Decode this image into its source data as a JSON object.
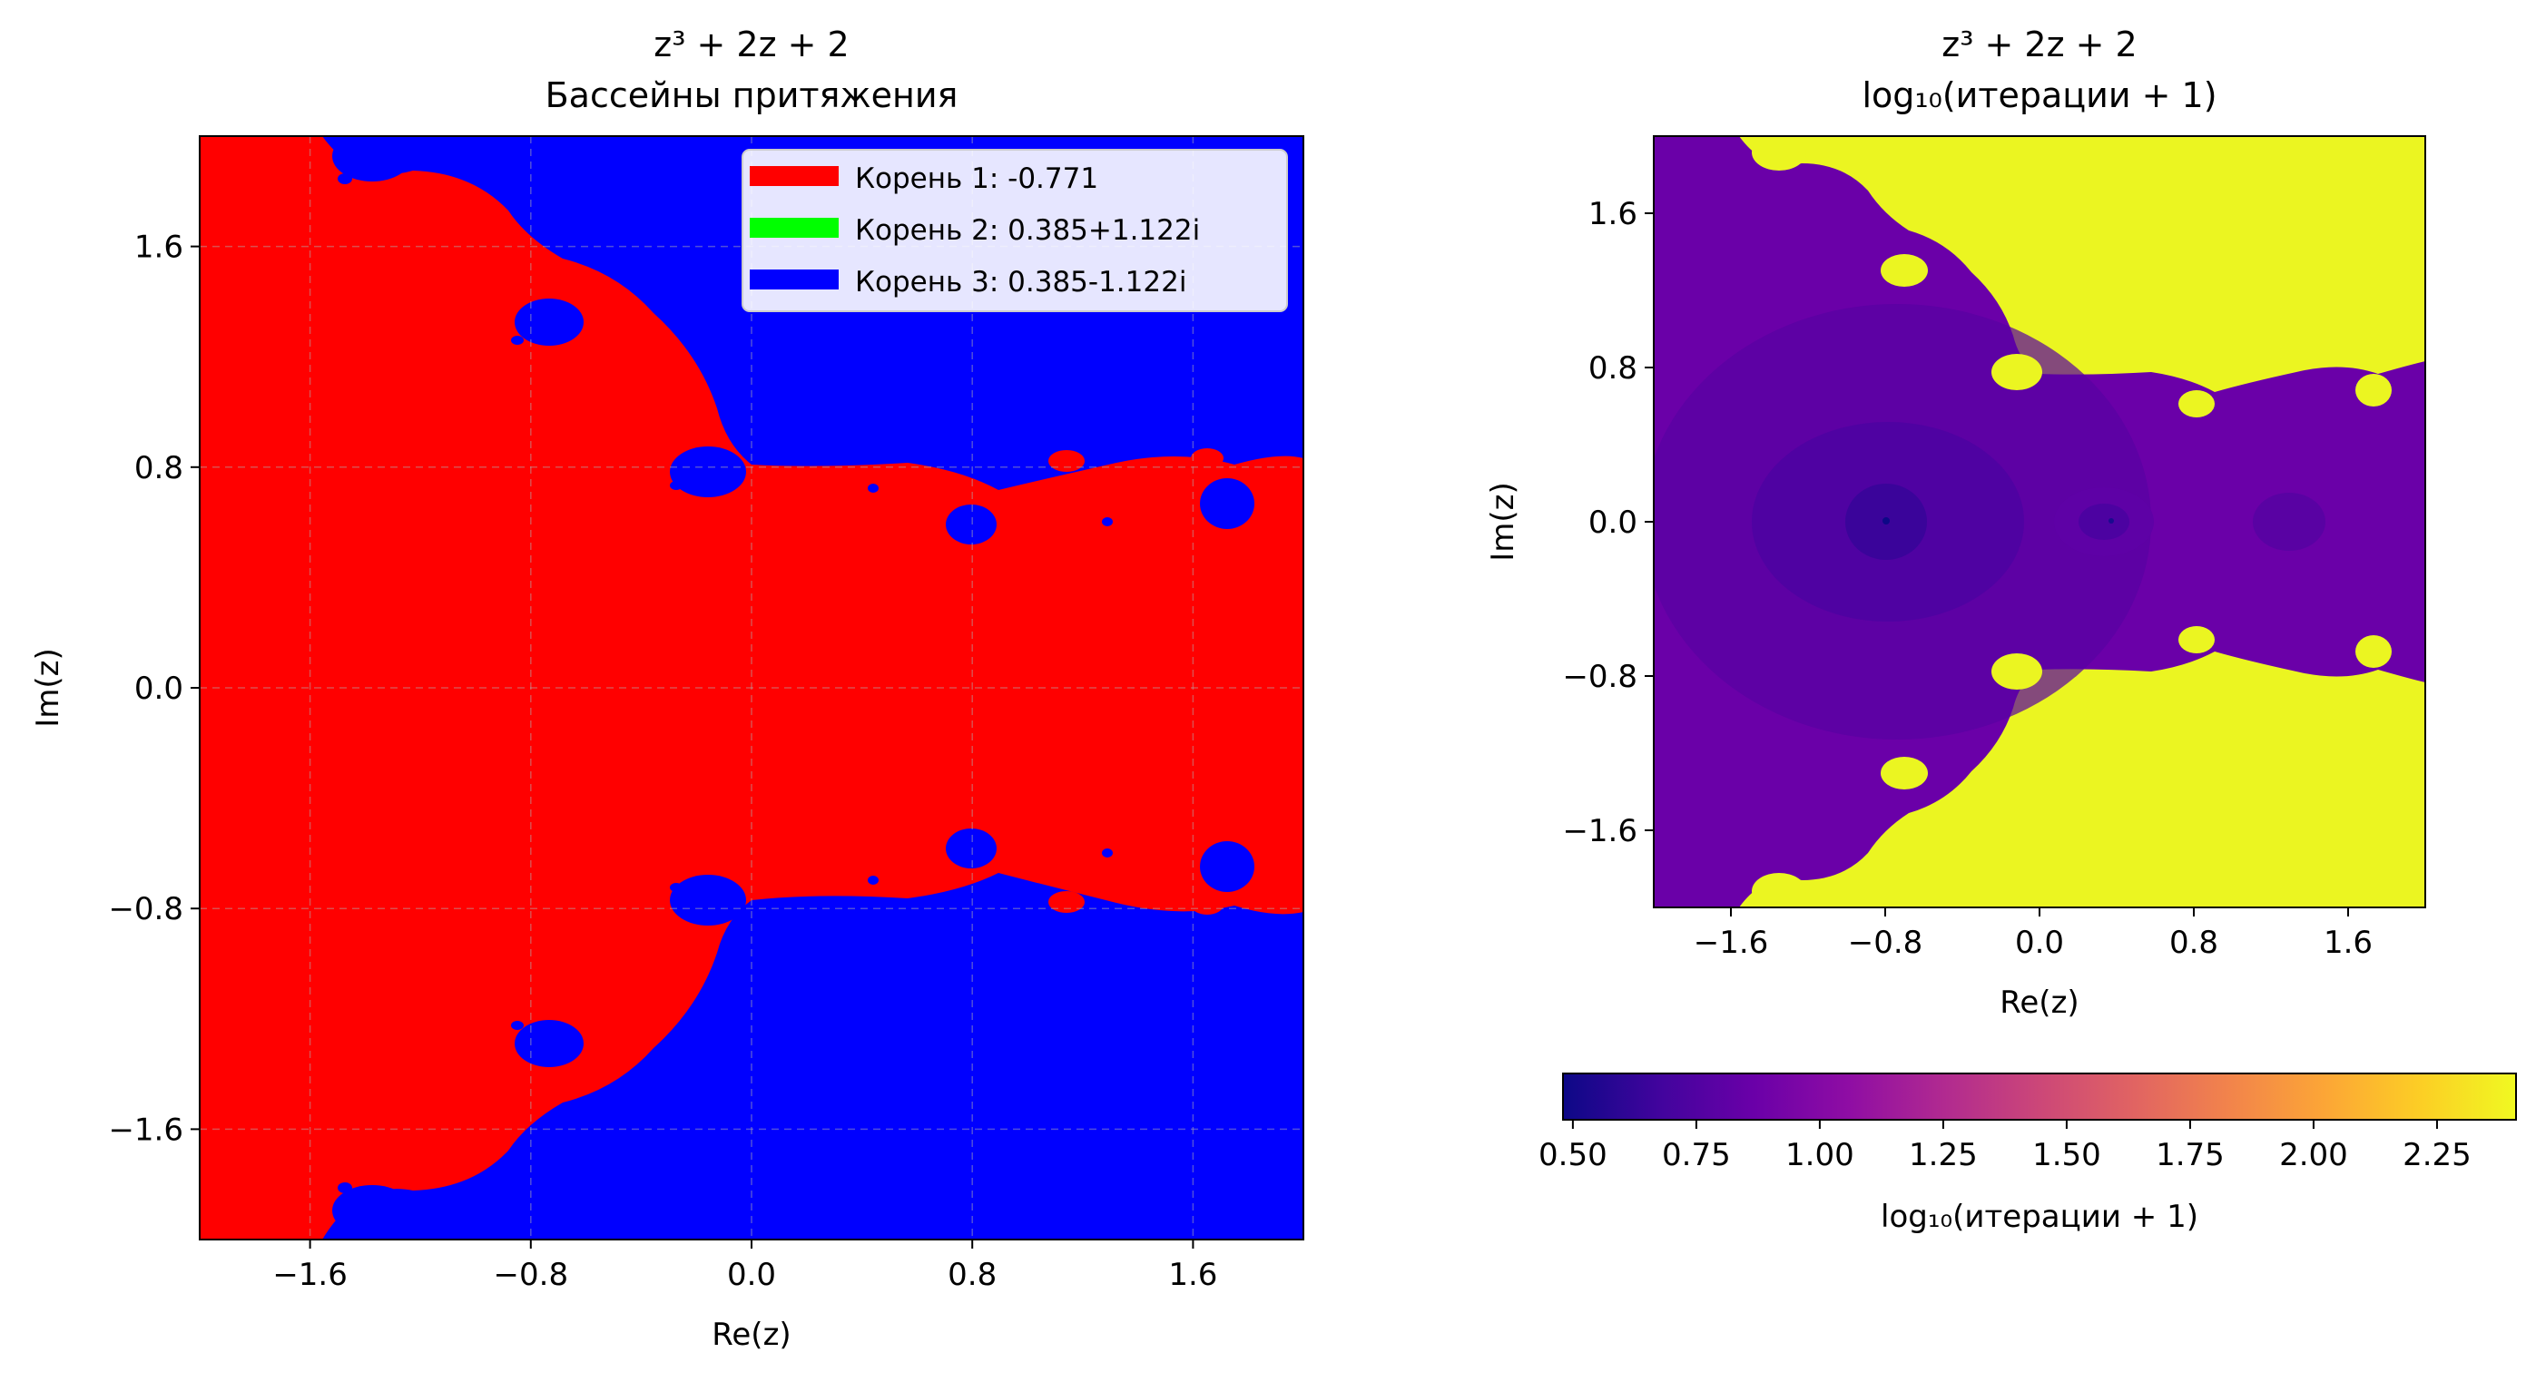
{
  "chart_data": [
    {
      "type": "heatmap",
      "title_line1": "z³ + 2z + 2",
      "title_line2": "Бассейны притяжения",
      "xlabel": "Re(z)",
      "ylabel": "Im(z)",
      "xlim": [
        -2.0,
        2.0
      ],
      "ylim": [
        -2.0,
        2.0
      ],
      "xticks": [
        -1.6,
        -0.8,
        0.0,
        0.8,
        1.6
      ],
      "yticks": [
        -1.6,
        -0.8,
        0.0,
        0.8,
        1.6
      ],
      "xtick_labels": [
        "−1.6",
        "−0.8",
        "0.0",
        "0.8",
        "1.6"
      ],
      "ytick_labels": [
        "−1.6",
        "−0.8",
        "0.0",
        "0.8",
        "1.6"
      ],
      "grid": true,
      "legend_position": "upper right",
      "roots": [
        {
          "label": "Корень 1: -0.771",
          "re": -0.771,
          "im": 0.0,
          "color": "#ff0000"
        },
        {
          "label": "Корень 2: 0.385+1.122i",
          "re": 0.385,
          "im": 1.122,
          "color": "#00ff00"
        },
        {
          "label": "Корень 3: 0.385-1.122i",
          "re": 0.385,
          "im": -1.122,
          "color": "#0000ff"
        }
      ],
      "nonconvergent_color": "#0000ff"
    },
    {
      "type": "heatmap",
      "title_line1": "z³ + 2z + 2",
      "title_line2": "log₁₀(итерации + 1)",
      "xlabel": "Re(z)",
      "ylabel": "Im(z)",
      "xlim": [
        -2.0,
        2.0
      ],
      "ylim": [
        -2.0,
        2.0
      ],
      "xticks": [
        -1.6,
        -0.8,
        0.0,
        0.8,
        1.6
      ],
      "yticks": [
        -1.6,
        -0.8,
        0.0,
        0.8,
        1.6
      ],
      "xtick_labels": [
        "−1.6",
        "−0.8",
        "0.0",
        "0.8",
        "1.6"
      ],
      "ytick_labels": [
        "−1.6",
        "−0.8",
        "0.0",
        "0.8",
        "1.6"
      ],
      "colormap": "plasma",
      "colorbar": {
        "label": "log₁₀(итерации + 1)",
        "orientation": "horizontal",
        "range": [
          0.48,
          2.41
        ],
        "ticks": [
          0.5,
          0.75,
          1.0,
          1.25,
          1.5,
          1.75,
          2.0,
          2.25
        ],
        "tick_labels": [
          "0.50",
          "0.75",
          "1.00",
          "1.25",
          "1.50",
          "1.75",
          "2.00",
          "2.25"
        ]
      }
    }
  ]
}
